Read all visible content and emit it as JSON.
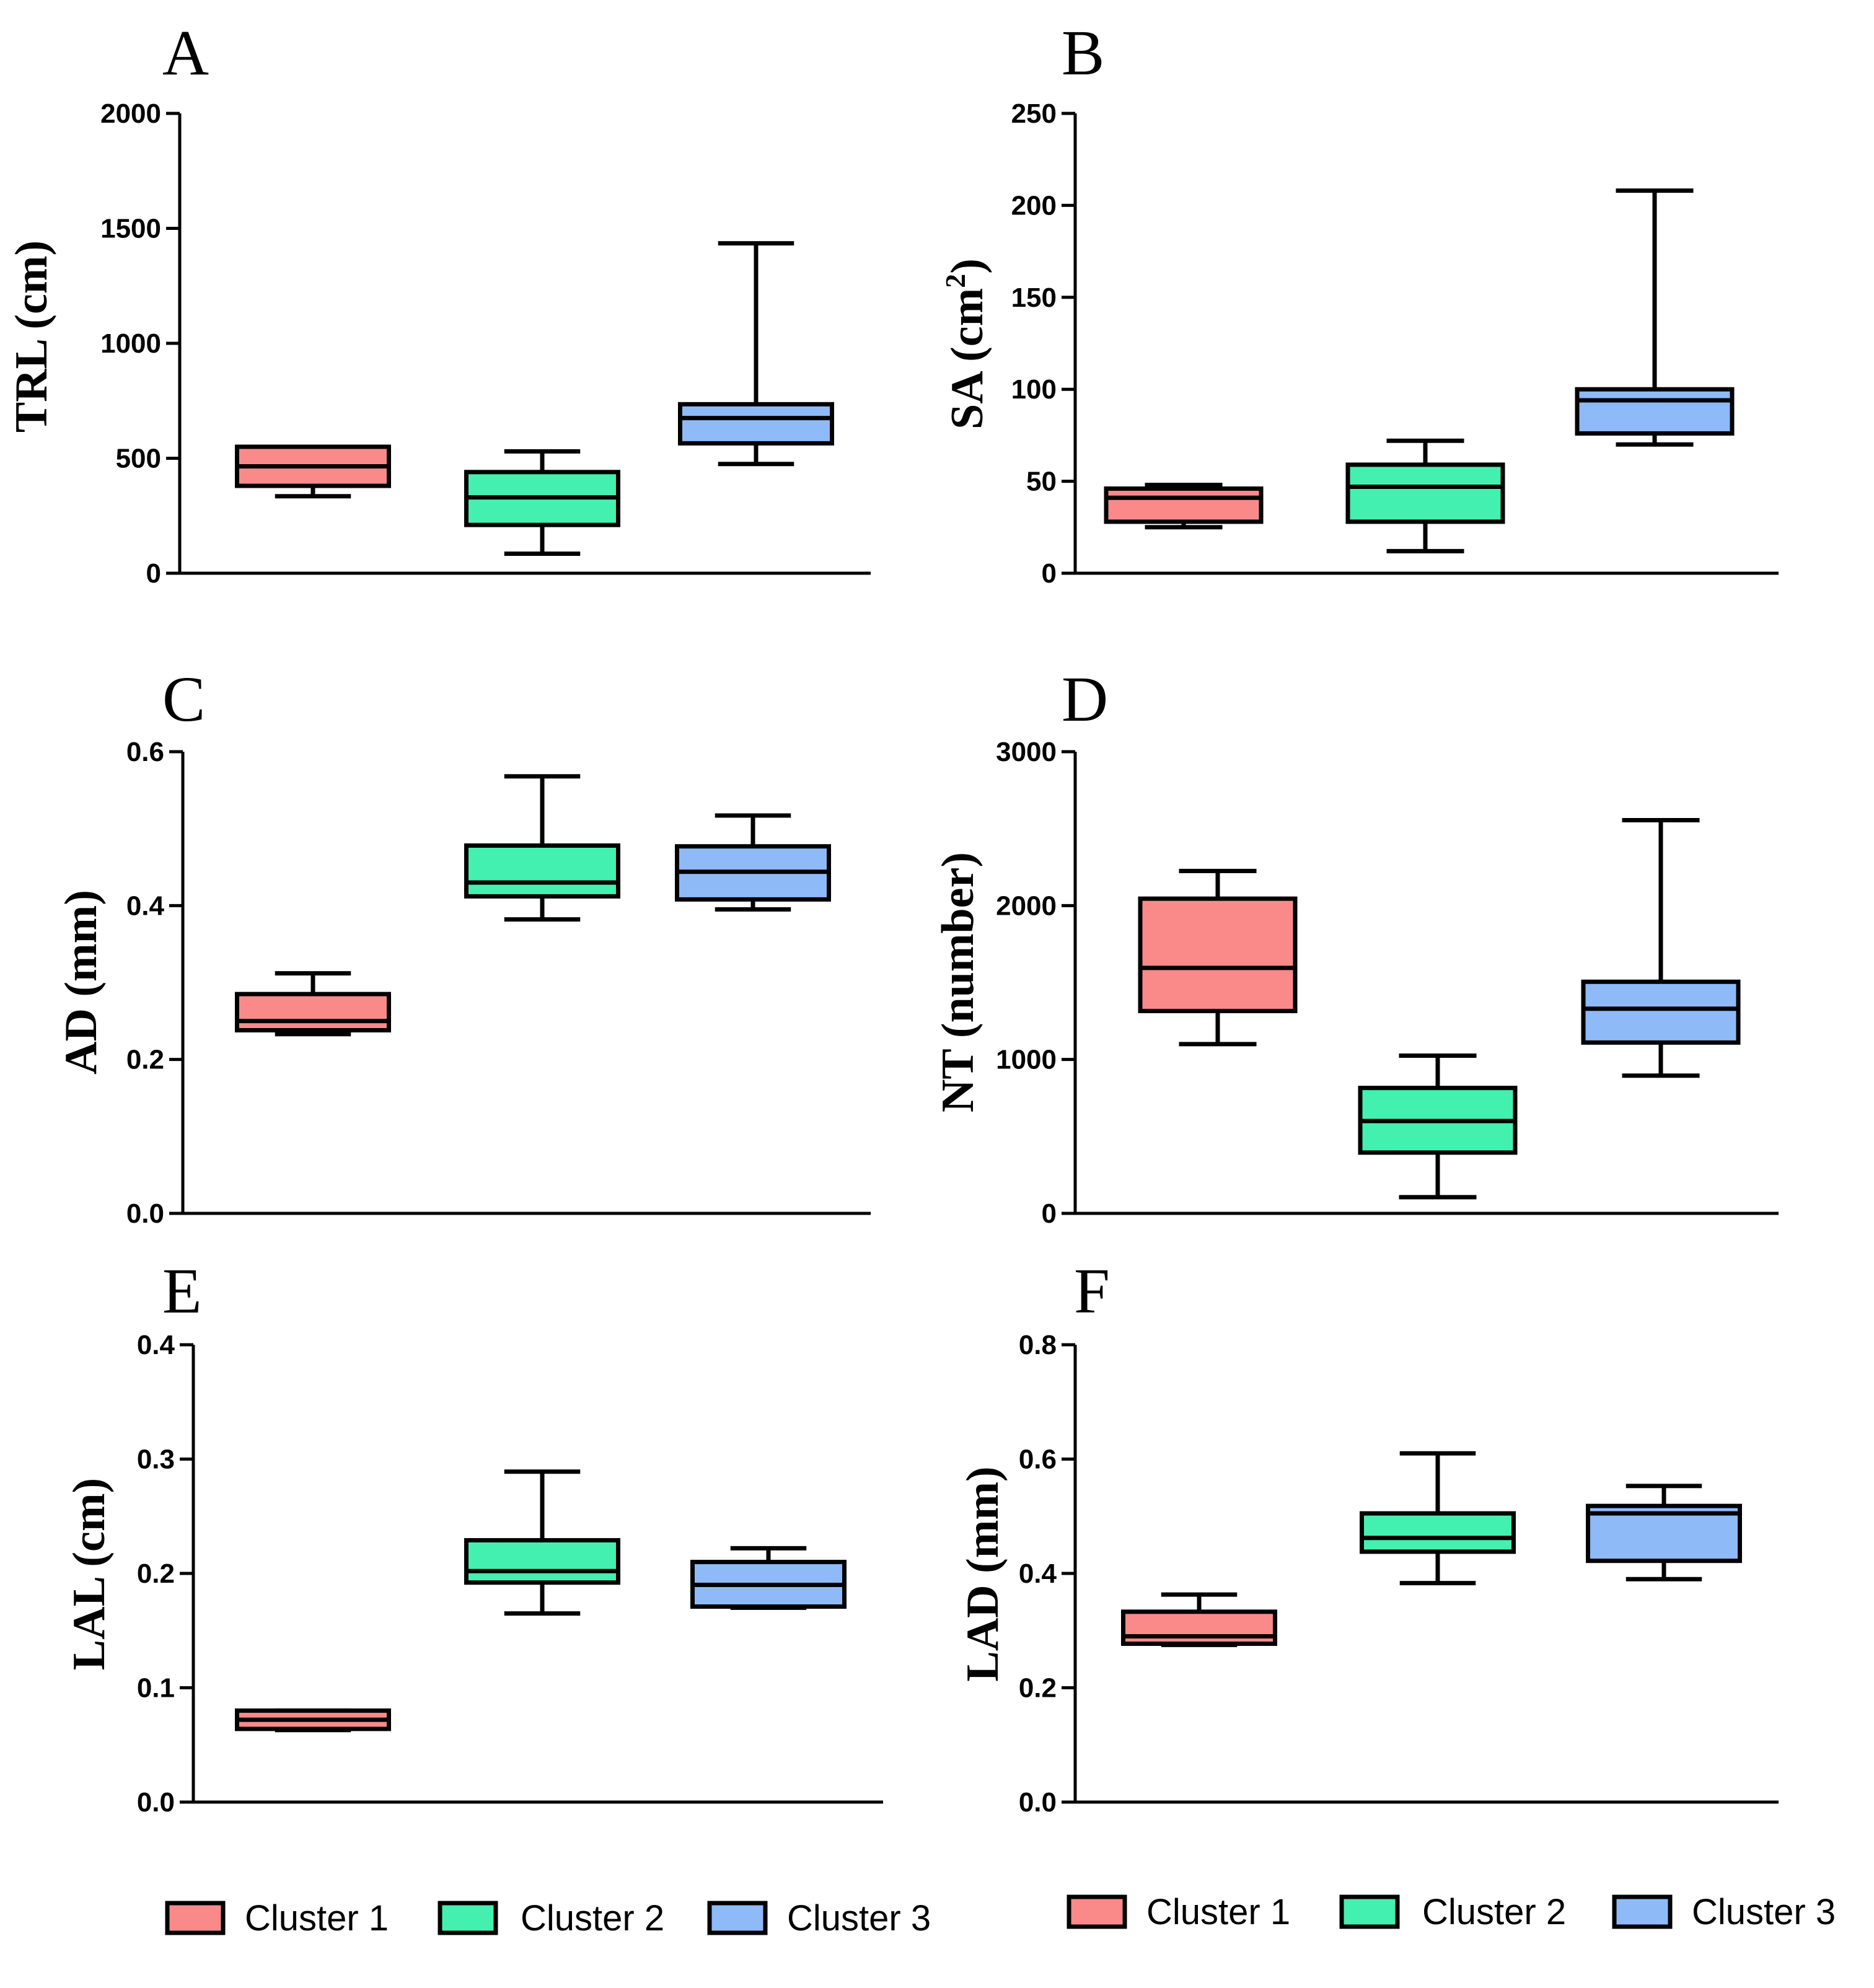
{
  "colors": {
    "Cluster 1": "#fa8a8a",
    "Cluster 2": "#44f0b0",
    "Cluster 3": "#8fbaf8"
  },
  "legends": [
    {
      "items": [
        "Cluster 1",
        "Cluster 2",
        "Cluster 3"
      ]
    },
    {
      "items": [
        "Cluster 1",
        "Cluster 2",
        "Cluster 3"
      ]
    }
  ],
  "chart_data": [
    {
      "type": "box",
      "panel": "A",
      "ylabel": "TRL (cm)",
      "ylim": [
        0,
        2000
      ],
      "yticks": [
        0,
        500,
        1000,
        1500,
        2000
      ],
      "ytick_labels": [
        "0",
        "500",
        "1000",
        "1500",
        "2000"
      ],
      "categories": [
        "Cluster 1",
        "Cluster 2",
        "Cluster 3"
      ],
      "boxes": [
        {
          "name": "Cluster 1",
          "min": 335,
          "q1": 380,
          "median": 465,
          "q3": 550,
          "max": 550
        },
        {
          "name": "Cluster 2",
          "min": 85,
          "q1": 210,
          "median": 330,
          "q3": 440,
          "max": 530
        },
        {
          "name": "Cluster 3",
          "min": 475,
          "q1": 565,
          "median": 675,
          "q3": 735,
          "max": 1435
        }
      ]
    },
    {
      "type": "box",
      "panel": "B",
      "ylabel": "SA (cm",
      "ylabel_sup": "2",
      "ylabel_end": ")",
      "ylim": [
        0,
        250
      ],
      "yticks": [
        0,
        50,
        100,
        150,
        200,
        250
      ],
      "ytick_labels": [
        "0",
        "50",
        "100",
        "150",
        "200",
        "250"
      ],
      "categories": [
        "Cluster 1",
        "Cluster 2",
        "Cluster 3"
      ],
      "boxes": [
        {
          "name": "Cluster 1",
          "min": 25,
          "q1": 28,
          "median": 41,
          "q3": 46,
          "max": 48
        },
        {
          "name": "Cluster 2",
          "min": 12,
          "q1": 28,
          "median": 47,
          "q3": 59,
          "max": 72
        },
        {
          "name": "Cluster 3",
          "min": 70,
          "q1": 76,
          "median": 94,
          "q3": 100,
          "max": 208
        }
      ]
    },
    {
      "type": "box",
      "panel": "C",
      "ylabel": "AD (mm)",
      "ylim": [
        0,
        0.6
      ],
      "yticks": [
        0,
        0.2,
        0.4,
        0.6
      ],
      "ytick_labels": [
        "0.0",
        "0.2",
        "0.4",
        "0.6"
      ],
      "categories": [
        "Cluster 1",
        "Cluster 2",
        "Cluster 3"
      ],
      "boxes": [
        {
          "name": "Cluster 1",
          "min": 0.233,
          "q1": 0.238,
          "median": 0.25,
          "q3": 0.285,
          "max": 0.312
        },
        {
          "name": "Cluster 2",
          "min": 0.382,
          "q1": 0.412,
          "median": 0.43,
          "q3": 0.478,
          "max": 0.568
        },
        {
          "name": "Cluster 3",
          "min": 0.395,
          "q1": 0.408,
          "median": 0.444,
          "q3": 0.477,
          "max": 0.517
        }
      ]
    },
    {
      "type": "box",
      "panel": "D",
      "ylabel": "NT (number)",
      "ylim": [
        0,
        3000
      ],
      "yticks": [
        0,
        1000,
        2000,
        3000
      ],
      "ytick_labels": [
        "0",
        "1000",
        "2000",
        "3000"
      ],
      "categories": [
        "Cluster 1",
        "Cluster 2",
        "Cluster 3"
      ],
      "boxes": [
        {
          "name": "Cluster 1",
          "min": 1100,
          "q1": 1315,
          "median": 1595,
          "q3": 2045,
          "max": 2225
        },
        {
          "name": "Cluster 2",
          "min": 105,
          "q1": 395,
          "median": 600,
          "q3": 815,
          "max": 1025
        },
        {
          "name": "Cluster 3",
          "min": 895,
          "q1": 1110,
          "median": 1330,
          "q3": 1505,
          "max": 2555
        }
      ]
    },
    {
      "type": "box",
      "panel": "E",
      "ylabel": "LAL (cm)",
      "ylim": [
        0,
        0.4
      ],
      "yticks": [
        0,
        0.1,
        0.2,
        0.3,
        0.4
      ],
      "ytick_labels": [
        "0.0",
        "0.1",
        "0.2",
        "0.3",
        "0.4"
      ],
      "categories": [
        "Cluster 1",
        "Cluster 2",
        "Cluster 3"
      ],
      "boxes": [
        {
          "name": "Cluster 1",
          "min": 0.063,
          "q1": 0.064,
          "median": 0.072,
          "q3": 0.08,
          "max": 0.08
        },
        {
          "name": "Cluster 2",
          "min": 0.165,
          "q1": 0.192,
          "median": 0.202,
          "q3": 0.229,
          "max": 0.289
        },
        {
          "name": "Cluster 3",
          "min": 0.17,
          "q1": 0.171,
          "median": 0.19,
          "q3": 0.21,
          "max": 0.222
        }
      ]
    },
    {
      "type": "box",
      "panel": "F",
      "ylabel": "LAD (mm)",
      "ylim": [
        0,
        0.8
      ],
      "yticks": [
        0,
        0.2,
        0.4,
        0.6,
        0.8
      ],
      "ytick_labels": [
        "0.0",
        "0.2",
        "0.4",
        "0.6",
        "0.8"
      ],
      "categories": [
        "Cluster 1",
        "Cluster 2",
        "Cluster 3"
      ],
      "boxes": [
        {
          "name": "Cluster 1",
          "min": 0.275,
          "q1": 0.277,
          "median": 0.29,
          "q3": 0.333,
          "max": 0.363
        },
        {
          "name": "Cluster 2",
          "min": 0.383,
          "q1": 0.438,
          "median": 0.462,
          "q3": 0.505,
          "max": 0.61
        },
        {
          "name": "Cluster 3",
          "min": 0.39,
          "q1": 0.422,
          "median": 0.505,
          "q3": 0.518,
          "max": 0.553
        }
      ]
    }
  ]
}
